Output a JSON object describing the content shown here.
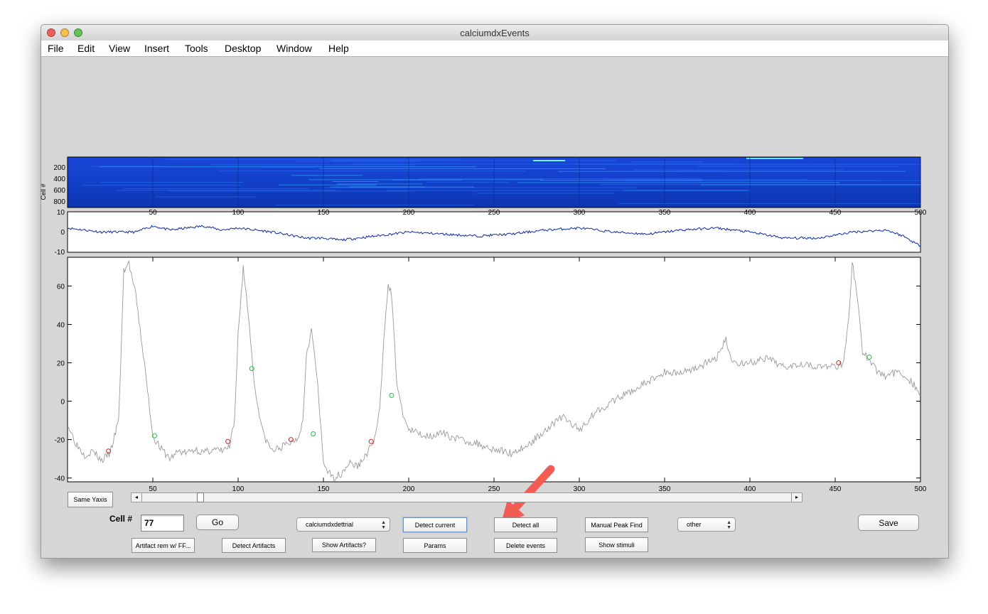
{
  "window": {
    "title": "calciumdxEvents"
  },
  "menu": [
    "File",
    "Edit",
    "View",
    "Insert",
    "Tools",
    "Desktop",
    "Window",
    "Help"
  ],
  "heatmap": {
    "ylabel": "Cell #",
    "yticks": [
      "200",
      "400",
      "600",
      "800"
    ],
    "colormap": "jet-blue"
  },
  "xticks": [
    "50",
    "100",
    "150",
    "200",
    "250",
    "300",
    "350",
    "400",
    "450",
    "500"
  ],
  "mean_trace": {
    "yticks": [
      "10",
      "0",
      "-10"
    ],
    "ylim": [
      -10,
      10
    ],
    "color": "#0b2a9a"
  },
  "main_trace": {
    "yticks": [
      "60",
      "40",
      "20",
      "0",
      "-20",
      "-40"
    ],
    "ylim": [
      -42,
      75
    ],
    "color": "#999999"
  },
  "chart_data": {
    "type": "line",
    "xlim": [
      0,
      500
    ],
    "ylim": [
      -42,
      75
    ],
    "x": [
      0,
      5,
      10,
      15,
      20,
      25,
      30,
      33,
      36,
      40,
      45,
      50,
      55,
      60,
      65,
      70,
      75,
      80,
      85,
      90,
      95,
      98,
      100,
      103,
      106,
      110,
      115,
      120,
      125,
      130,
      135,
      138,
      140,
      143,
      146,
      150,
      155,
      160,
      165,
      170,
      175,
      180,
      183,
      186,
      188,
      190,
      193,
      196,
      200,
      210,
      220,
      230,
      240,
      250,
      260,
      270,
      280,
      290,
      300,
      310,
      320,
      330,
      340,
      350,
      360,
      370,
      380,
      386,
      390,
      400,
      410,
      420,
      430,
      440,
      450,
      455,
      458,
      460,
      463,
      466,
      470,
      475,
      480,
      485,
      490,
      495,
      500
    ],
    "values": [
      -12,
      -22,
      -28,
      -26,
      -31,
      -27,
      -10,
      68,
      72,
      55,
      20,
      -18,
      -25,
      -30,
      -26,
      -27,
      -25,
      -27,
      -25,
      -26,
      -24,
      -10,
      35,
      70,
      45,
      5,
      -18,
      -26,
      -24,
      -22,
      -19,
      -10,
      25,
      37,
      15,
      -32,
      -40,
      -38,
      -32,
      -34,
      -28,
      -20,
      -5,
      40,
      62,
      55,
      10,
      -5,
      -15,
      -18,
      -17,
      -20,
      -22,
      -25,
      -27,
      -23,
      -15,
      -8,
      -15,
      -5,
      0,
      5,
      10,
      15,
      15,
      18,
      22,
      32,
      20,
      20,
      22,
      18,
      20,
      18,
      18,
      20,
      45,
      72,
      55,
      25,
      22,
      15,
      13,
      15,
      14,
      10,
      3
    ],
    "events_onset": [
      {
        "x": 24,
        "y": -26
      },
      {
        "x": 94,
        "y": -21
      },
      {
        "x": 131,
        "y": -20
      },
      {
        "x": 178,
        "y": -21
      },
      {
        "x": 452,
        "y": 20
      }
    ],
    "events_offset": [
      {
        "x": 51,
        "y": -18
      },
      {
        "x": 108,
        "y": 17
      },
      {
        "x": 144,
        "y": -17
      },
      {
        "x": 190,
        "y": 3
      },
      {
        "x": 470,
        "y": 23
      }
    ],
    "mean_trace_x": [
      0,
      20,
      40,
      50,
      60,
      70,
      80,
      90,
      100,
      120,
      140,
      150,
      160,
      180,
      200,
      220,
      240,
      260,
      280,
      300,
      320,
      340,
      360,
      380,
      400,
      420,
      440,
      460,
      480,
      490,
      500
    ],
    "mean_trace_values": [
      2,
      0,
      0,
      3,
      1,
      2,
      3,
      1,
      2,
      0,
      -3,
      -3,
      -4,
      -2,
      0,
      -1,
      -2,
      -1,
      1,
      2,
      0,
      -1,
      1,
      2,
      0,
      -3,
      -3,
      0,
      1,
      -2,
      -7
    ]
  },
  "controls": {
    "same_yaxis": "Same Yaxis",
    "cell_label": "Cell #",
    "cell_value": "77",
    "go": "Go",
    "method_select": "calciumdxdettrial",
    "detect_current": "Detect current",
    "detect_all": "Detect all",
    "manual_peak_find": "Manual Peak Find",
    "other_select": "other",
    "save": "Save",
    "artifact_rem": "Artifact rem w/ FF...",
    "detect_artifacts": "Detect Artifacts",
    "show_artifacts": "Show Artifacts?",
    "params": "Params",
    "delete_events": "Delete events",
    "show_stimuli": "Show stimuli"
  },
  "colors": {
    "onset": "#cc2222",
    "offset": "#22bb44",
    "arrow": "#f25c54"
  }
}
